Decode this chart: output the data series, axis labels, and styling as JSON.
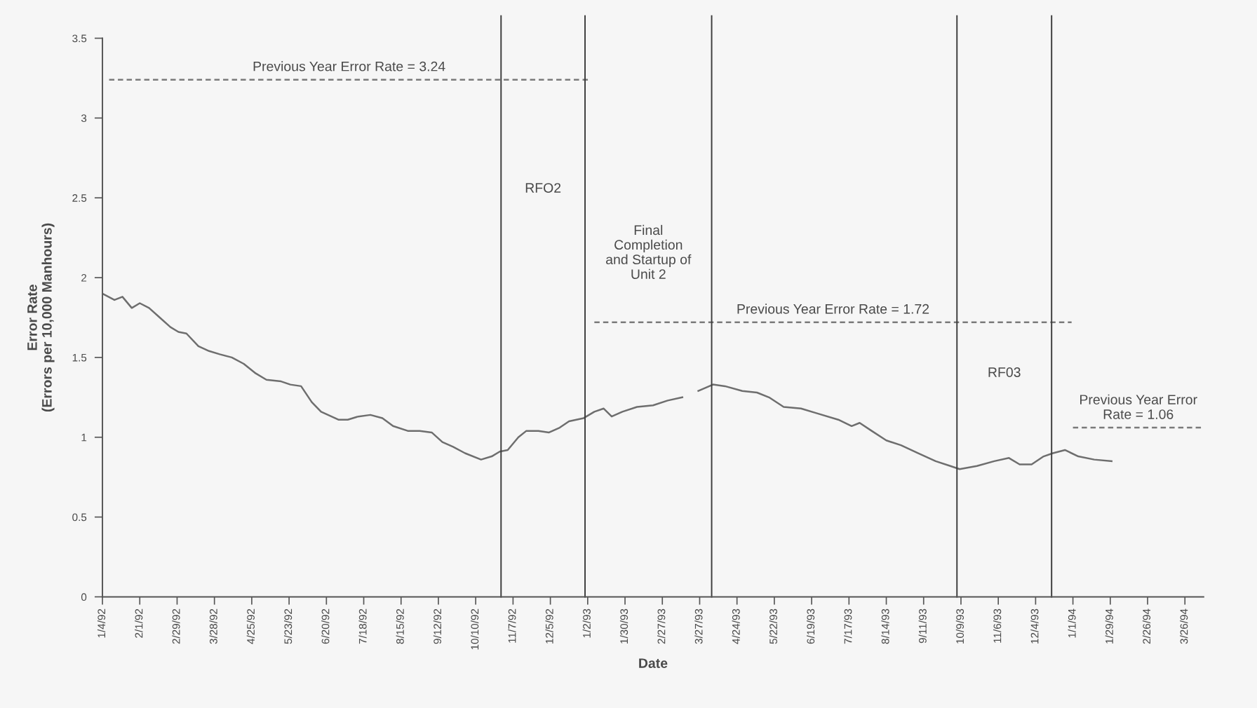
{
  "chart_data": {
    "type": "line",
    "xlabel": "Date",
    "ylabel": "Error Rate\n(Errors per 10,000 Manhours)",
    "x": [
      "1992-01-04",
      "1992-01-13",
      "1992-01-19",
      "1992-01-26",
      "1992-02-01",
      "1992-02-08",
      "1992-02-16",
      "1992-02-24",
      "1992-03-01",
      "1992-03-07",
      "1992-03-16",
      "1992-03-24",
      "1992-04-01",
      "1992-04-10",
      "1992-04-19",
      "1992-04-28",
      "1992-05-06",
      "1992-05-17",
      "1992-05-24",
      "1992-06-01",
      "1992-06-09",
      "1992-06-16",
      "1992-06-29",
      "1992-07-06",
      "1992-07-14",
      "1992-07-23",
      "1992-08-01",
      "1992-08-09",
      "1992-08-20",
      "1992-08-29",
      "1992-09-07",
      "1992-09-15",
      "1992-09-23",
      "1992-10-02",
      "1992-10-14",
      "1992-10-22",
      "1992-10-28",
      "1992-11-03",
      "1992-11-11",
      "1992-11-17",
      "1992-11-26",
      "1992-12-04",
      "1992-12-12",
      "1992-12-19",
      "1992-12-30",
      "1993-01-07",
      "1993-01-14",
      "1993-01-20",
      "1993-01-28",
      "1993-02-08",
      "1993-02-20",
      "1993-03-03",
      "1993-03-14",
      "1993-03-20",
      "1993-03-26",
      "1993-04-06",
      "1993-04-15",
      "1993-04-28",
      "1993-05-09",
      "1993-05-18",
      "1993-05-29",
      "1993-06-11",
      "1993-06-23",
      "1993-07-09",
      "1993-07-19",
      "1993-07-25",
      "1993-08-03",
      "1993-08-14",
      "1993-08-25",
      "1993-09-07",
      "1993-09-20",
      "1993-10-01",
      "1993-10-08",
      "1993-10-21",
      "1993-11-03",
      "1993-11-14",
      "1993-11-22",
      "1993-12-01",
      "1993-12-10",
      "1993-12-17",
      "1993-12-26",
      "1994-01-05",
      "1994-01-17",
      "1994-01-30"
    ],
    "series": [
      {
        "color": "#6e6e6e",
        "values": [
          1.9,
          1.86,
          1.88,
          1.81,
          1.84,
          1.81,
          1.75,
          1.69,
          1.66,
          1.65,
          1.57,
          1.54,
          1.52,
          1.5,
          1.46,
          1.4,
          1.36,
          1.35,
          1.33,
          1.32,
          1.22,
          1.16,
          1.11,
          1.11,
          1.13,
          1.14,
          1.12,
          1.07,
          1.04,
          1.04,
          1.03,
          0.97,
          0.94,
          0.9,
          0.86,
          0.88,
          0.91,
          0.92,
          1.0,
          1.04,
          1.04,
          1.03,
          1.06,
          1.1,
          1.12,
          1.16,
          1.18,
          1.13,
          1.16,
          1.19,
          1.2,
          1.23,
          1.25,
          null,
          1.29,
          1.33,
          1.32,
          1.29,
          1.28,
          1.25,
          1.19,
          1.18,
          1.15,
          1.11,
          1.07,
          1.09,
          1.04,
          0.98,
          0.95,
          0.9,
          0.85,
          0.82,
          0.8,
          0.82,
          0.85,
          0.87,
          0.83,
          0.83,
          0.88,
          0.9,
          0.92,
          0.88,
          0.86,
          0.85
        ]
      },
      {
        "type": "line",
        "line_style": "dashed",
        "name": "Previous Year Error Rate = 3.24",
        "color": "#7a7a7a",
        "x": [
          "1992-01-09",
          "1993-01-03"
        ],
        "values": [
          3.24,
          3.24
        ]
      },
      {
        "type": "line",
        "line_style": "dashed",
        "name": "Previous Year Error Rate = 1.72",
        "color": "#7a7a7a",
        "x": [
          "1993-01-07",
          "1993-12-31"
        ],
        "values": [
          1.72,
          1.72
        ]
      },
      {
        "type": "line",
        "line_style": "dashed",
        "name": "Previous Year Error\nRate = 1.06",
        "color": "#7a7a7a",
        "x": [
          "1994-01-01",
          "1994-04-09"
        ],
        "values": [
          1.06,
          1.06
        ]
      }
    ],
    "ref_lines": [
      {
        "axis": "x",
        "value": "1992-10-29",
        "color": "#3c3c3c",
        "line_style": "solid",
        "label": "RFO2"
      },
      {
        "axis": "x",
        "value": "1992-12-31",
        "color": "#3c3c3c",
        "line_style": "solid",
        "label": "Final\nCompletion\nand Startup of\nUnit 2"
      },
      {
        "axis": "x",
        "value": "1993-04-05",
        "color": "#3c3c3c",
        "line_style": "solid"
      },
      {
        "axis": "x",
        "value": "1993-10-06",
        "color": "#3c3c3c",
        "line_style": "solid",
        "label": "RF03"
      },
      {
        "axis": "x",
        "value": "1993-12-16",
        "color": "#3c3c3c",
        "line_style": "solid"
      }
    ],
    "xlim": [
      "1992-01-04",
      "1994-04-09"
    ],
    "ylim": [
      0,
      3.5
    ],
    "yticks": [
      0,
      0.5,
      1,
      1.5,
      2,
      2.5,
      3,
      3.5
    ],
    "xticks": [
      {
        "value": "1992-01-04",
        "label": "1/4/92"
      },
      {
        "value": "1992-02-01",
        "label": "2/1/92"
      },
      {
        "value": "1992-02-29",
        "label": "2/29/92"
      },
      {
        "value": "1992-03-28",
        "label": "3/28/92"
      },
      {
        "value": "1992-04-25",
        "label": "4/25/92"
      },
      {
        "value": "1992-05-23",
        "label": "5/23/92"
      },
      {
        "value": "1992-06-20",
        "label": "6/20/92"
      },
      {
        "value": "1992-07-18",
        "label": "7/18/92"
      },
      {
        "value": "1992-08-15",
        "label": "8/15/92"
      },
      {
        "value": "1992-09-12",
        "label": "9/12/92"
      },
      {
        "value": "1992-10-10",
        "label": "10/10/92"
      },
      {
        "value": "1992-11-07",
        "label": "11/7/92"
      },
      {
        "value": "1992-12-05",
        "label": "12/5/92"
      },
      {
        "value": "1993-01-02",
        "label": "1/2/93"
      },
      {
        "value": "1993-01-30",
        "label": "1/30/93"
      },
      {
        "value": "1993-02-27",
        "label": "2/27/93"
      },
      {
        "value": "1993-03-27",
        "label": "3/27/93"
      },
      {
        "value": "1993-04-24",
        "label": "4/24/93"
      },
      {
        "value": "1993-05-22",
        "label": "5/22/93"
      },
      {
        "value": "1993-06-19",
        "label": "6/19/93"
      },
      {
        "value": "1993-07-17",
        "label": "7/17/93"
      },
      {
        "value": "1993-08-14",
        "label": "8/14/93"
      },
      {
        "value": "1993-09-11",
        "label": "9/11/93"
      },
      {
        "value": "1993-10-09",
        "label": "10/9/93"
      },
      {
        "value": "1993-11-06",
        "label": "11/6/93"
      },
      {
        "value": "1993-12-04",
        "label": "12/4/93"
      },
      {
        "value": "1994-01-01",
        "label": "1/1/94"
      },
      {
        "value": "1994-01-29",
        "label": "1/29/94"
      },
      {
        "value": "1994-02-26",
        "label": "2/26/94"
      },
      {
        "value": "1994-03-26",
        "label": "3/26/94"
      }
    ],
    "grid": false,
    "legend": false,
    "marker": "none",
    "line_style": "solid"
  }
}
